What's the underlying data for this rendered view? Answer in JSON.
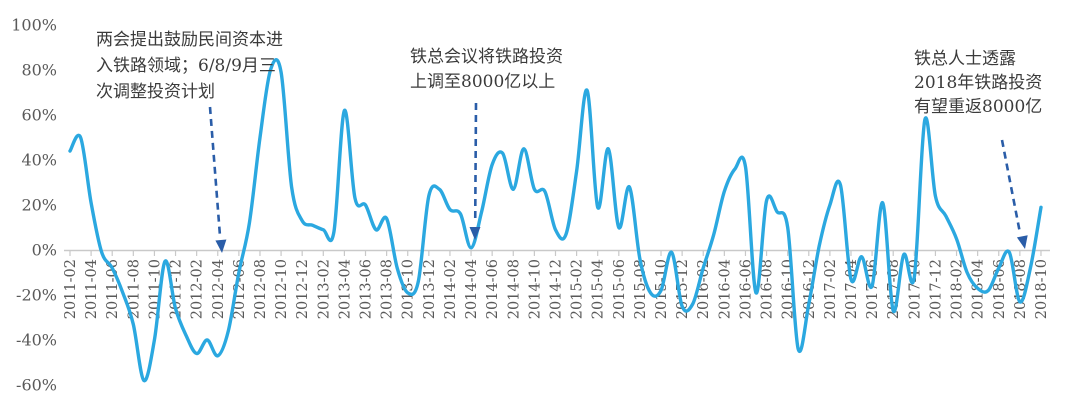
{
  "chart_data": {
    "type": "line",
    "title": "",
    "xlabel": "",
    "ylabel": "",
    "legend": "none",
    "grid": false,
    "line_color": "#2BA8E0",
    "axis_color": "#C9C9C9",
    "tick_label_color": "#595959",
    "ylim": [
      -60,
      100
    ],
    "y_tick_step": 20,
    "y_tick_labels": [
      "100%",
      "80%",
      "60%",
      "40%",
      "20%",
      "0%",
      "-20%",
      "-40%",
      "-60%"
    ],
    "x_tick_every": 2,
    "x": [
      "2011-02",
      "2011-03",
      "2011-04",
      "2011-05",
      "2011-06",
      "2011-07",
      "2011-08",
      "2011-09",
      "2011-10",
      "2011-11",
      "2011-12",
      "2012-01",
      "2012-02",
      "2012-03",
      "2012-04",
      "2012-05",
      "2012-06",
      "2012-07",
      "2012-08",
      "2012-09",
      "2012-10",
      "2012-11",
      "2012-12",
      "2013-01",
      "2013-02",
      "2013-03",
      "2013-04",
      "2013-05",
      "2013-06",
      "2013-07",
      "2013-08",
      "2013-09",
      "2013-10",
      "2013-11",
      "2013-12",
      "2014-01",
      "2014-02",
      "2014-03",
      "2014-04",
      "2014-05",
      "2014-06",
      "2014-07",
      "2014-08",
      "2014-09",
      "2014-10",
      "2014-11",
      "2014-12",
      "2015-01",
      "2015-02",
      "2015-03",
      "2015-04",
      "2015-05",
      "2015-06",
      "2015-07",
      "2015-08",
      "2015-09",
      "2015-10",
      "2015-11",
      "2015-12",
      "2016-01",
      "2016-02",
      "2016-03",
      "2016-04",
      "2016-05",
      "2016-06",
      "2016-07",
      "2016-08",
      "2016-09",
      "2016-10",
      "2016-11",
      "2016-12",
      "2017-01",
      "2017-02",
      "2017-03",
      "2017-04",
      "2017-05",
      "2017-06",
      "2017-07",
      "2017-08",
      "2017-09",
      "2017-10",
      "2017-11",
      "2017-12",
      "2018-01",
      "2018-02",
      "2018-03",
      "2018-04",
      "2018-05",
      "2018-06",
      "2018-07",
      "2018-08",
      "2018-09",
      "2018-10"
    ],
    "values": [
      44,
      50,
      21,
      -1,
      -8,
      -19,
      -33,
      -58,
      -40,
      -5,
      -26,
      -38,
      -46,
      -40,
      -47,
      -36,
      -10,
      12,
      50,
      80,
      79,
      28,
      13,
      11,
      9,
      8,
      62,
      23,
      20,
      9,
      14,
      -8,
      -19,
      -14,
      24,
      27,
      18,
      16,
      1,
      17,
      38,
      43,
      27,
      45,
      27,
      26,
      9,
      7,
      35,
      71,
      19,
      45,
      10,
      28,
      -4,
      -19,
      -18,
      -1,
      -25,
      -24,
      -8,
      7,
      26,
      36,
      37,
      -19,
      22,
      17,
      10,
      -44,
      -24,
      2,
      20,
      29,
      -13,
      -3,
      -16,
      21,
      -27,
      -2,
      -12,
      58,
      24,
      15,
      5,
      -10,
      -17,
      -18,
      -8,
      -1,
      -23,
      -8,
      19
    ]
  },
  "annotations": [
    {
      "lines": [
        "两会提出鼓励民间资本进",
        "入铁路领域；6/8/9月三",
        "次调整投资计划"
      ],
      "points_to": "2012-04",
      "arrow_color": "#2A5DA8"
    },
    {
      "lines": [
        "铁总会议将铁路投资",
        "上调至8000亿以上"
      ],
      "points_to": "2014-04",
      "arrow_color": "#2A5DA8"
    },
    {
      "lines": [
        "铁总人士透露",
        "2018年铁路投资",
        "有望重返8000亿"
      ],
      "points_to": "2018-08",
      "arrow_color": "#2A5DA8"
    }
  ]
}
